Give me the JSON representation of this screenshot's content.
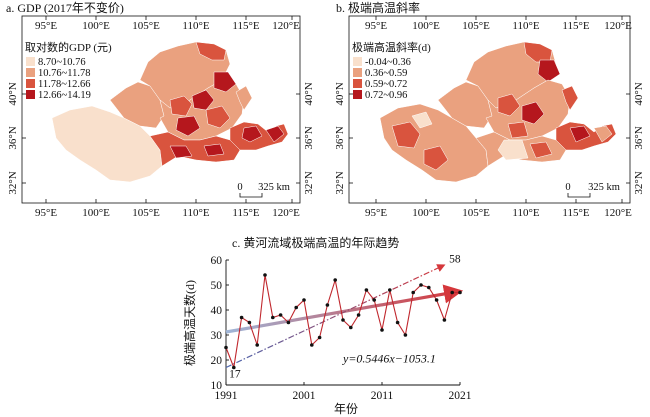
{
  "panel_a": {
    "title": "a. GDP (2017年不变价)",
    "legend_title": "取对数的GDP (元)",
    "legend_items": [
      {
        "label": "8.70~10.76",
        "color": "#f9e0cc"
      },
      {
        "label": "10.76~11.78",
        "color": "#eaa17f"
      },
      {
        "label": "11.78~12.66",
        "color": "#d9543e"
      },
      {
        "label": "12.66~14.19",
        "color": "#b5171d"
      }
    ],
    "lon_ticks": [
      "95°E",
      "100°E",
      "105°E",
      "110°E",
      "115°E",
      "120°E"
    ],
    "lat_ticks": [
      "40°N",
      "36°N",
      "32°N"
    ],
    "scale_zero": "0",
    "scale_label": "325 km"
  },
  "panel_b": {
    "title": "b. 极端高温斜率",
    "legend_title": "极端高温斜率(d)",
    "legend_items": [
      {
        "label": "-0.04~0.36",
        "color": "#f9e0cc"
      },
      {
        "label": "0.36~0.59",
        "color": "#eaa17f"
      },
      {
        "label": "0.59~0.72",
        "color": "#d9543e"
      },
      {
        "label": "0.72~0.96",
        "color": "#b5171d"
      }
    ],
    "lon_ticks": [
      "95°E",
      "100°E",
      "105°E",
      "110°E",
      "115°E",
      "120°E"
    ],
    "lat_ticks": [
      "40°N",
      "36°N",
      "32°N"
    ],
    "scale_zero": "0",
    "scale_label": "325 km"
  },
  "panel_c": {
    "title": "c. 黄河流域极端高温的年际趋势",
    "equation": "y=0.5446x−1053.1",
    "min_label": "17",
    "max_label": "58"
  },
  "chart_data": {
    "type": "line",
    "xlabel": "年份",
    "ylabel": "极端高温天数(d)",
    "xlim": [
      1991,
      2021
    ],
    "ylim": [
      10,
      60
    ],
    "x_ticks": [
      1991,
      2001,
      2011,
      2021
    ],
    "y_ticks": [
      10,
      20,
      30,
      40,
      50,
      60
    ],
    "x": [
      1991,
      1992,
      1993,
      1994,
      1995,
      1996,
      1997,
      1998,
      1999,
      2000,
      2001,
      2002,
      2003,
      2004,
      2005,
      2006,
      2007,
      2008,
      2009,
      2010,
      2011,
      2012,
      2013,
      2014,
      2015,
      2016,
      2017,
      2018,
      2019,
      2020,
      2021
    ],
    "values": [
      25,
      17,
      37,
      35,
      26,
      54,
      37,
      38,
      35,
      41,
      44,
      26,
      29,
      42,
      52,
      36,
      33,
      38,
      48,
      44,
      32,
      48,
      35,
      30,
      47,
      50,
      49,
      44,
      36,
      47,
      47
    ],
    "trend": {
      "slope": 0.5446,
      "intercept": -1053.1
    },
    "envelope": {
      "start": [
        1991,
        17
      ],
      "end": [
        2019,
        58
      ]
    },
    "colors": {
      "series": "#c0272d",
      "trend_start": "#9fb6d8",
      "trend_end": "#d5373b",
      "envelope_low": "#4a66b0",
      "envelope_high": "#d5373b"
    }
  }
}
